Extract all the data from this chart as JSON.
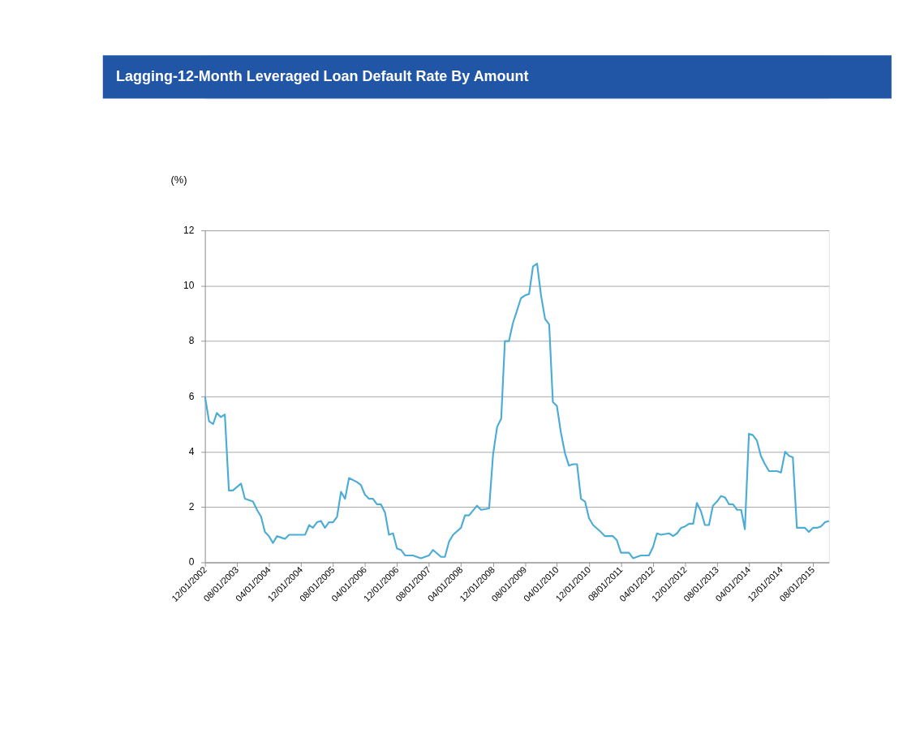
{
  "chart_data": {
    "type": "line",
    "title": "Lagging-12-Month  Leveraged Loan Default Rate By Amount",
    "ylabel": "(%)",
    "x": [
      "2002-12",
      "2003-01",
      "2003-02",
      "2003-03",
      "2003-04",
      "2003-05",
      "2003-06",
      "2003-07",
      "2003-09",
      "2003-10",
      "2003-12",
      "2004-01",
      "2004-02",
      "2004-03",
      "2004-04",
      "2004-05",
      "2004-06",
      "2004-07",
      "2004-08",
      "2004-09",
      "2005-01",
      "2005-02",
      "2005-03",
      "2005-04",
      "2005-05",
      "2005-06",
      "2005-07",
      "2005-08",
      "2005-09",
      "2005-10",
      "2005-11",
      "2005-12",
      "2006-02",
      "2006-03",
      "2006-04",
      "2006-05",
      "2006-06",
      "2006-07",
      "2006-08",
      "2006-09",
      "2006-10",
      "2006-11",
      "2006-12",
      "2007-01",
      "2007-02",
      "2007-04",
      "2007-05",
      "2007-06",
      "2007-08",
      "2007-09",
      "2007-11",
      "2007-12",
      "2008-01",
      "2008-02",
      "2008-04",
      "2008-05",
      "2008-06",
      "2008-08",
      "2008-09",
      "2008-11",
      "2008-12",
      "2009-01",
      "2009-02",
      "2009-03",
      "2009-04",
      "2009-05",
      "2009-06",
      "2009-07",
      "2009-08",
      "2009-09",
      "2009-10",
      "2009-11",
      "2009-12",
      "2010-01",
      "2010-02",
      "2010-03",
      "2010-04",
      "2010-05",
      "2010-06",
      "2010-07",
      "2010-08",
      "2010-09",
      "2010-10",
      "2010-11",
      "2010-12",
      "2011-01",
      "2011-03",
      "2011-04",
      "2011-06",
      "2011-07",
      "2011-08",
      "2011-10",
      "2011-11",
      "2011-12",
      "2012-01",
      "2012-03",
      "2012-04",
      "2012-05",
      "2012-06",
      "2012-08",
      "2012-09",
      "2012-10",
      "2012-11",
      "2012-12",
      "2013-01",
      "2013-02",
      "2013-03",
      "2013-04",
      "2013-05",
      "2013-06",
      "2013-07",
      "2013-08",
      "2013-09",
      "2013-10",
      "2013-11",
      "2013-12",
      "2014-01",
      "2014-02",
      "2014-03",
      "2014-04",
      "2014-05",
      "2014-06",
      "2014-07",
      "2014-08",
      "2014-09",
      "2014-11",
      "2014-12",
      "2015-01",
      "2015-02",
      "2015-03",
      "2015-04",
      "2015-05",
      "2015-06",
      "2015-07",
      "2015-08",
      "2015-09",
      "2015-10",
      "2015-11",
      "2015-12"
    ],
    "series": [
      {
        "color": "#4bacd6",
        "values": [
          6.0,
          5.1,
          5.0,
          5.4,
          5.25,
          5.35,
          2.6,
          2.6,
          2.85,
          2.3,
          2.2,
          1.9,
          1.65,
          1.1,
          0.95,
          0.7,
          0.95,
          0.9,
          0.85,
          1.0,
          1.0,
          1.35,
          1.25,
          1.45,
          1.5,
          1.25,
          1.45,
          1.45,
          1.65,
          2.55,
          2.3,
          3.05,
          2.9,
          2.8,
          2.45,
          2.3,
          2.3,
          2.1,
          2.1,
          1.8,
          1.0,
          1.05,
          0.5,
          0.45,
          0.25,
          0.25,
          0.2,
          0.15,
          0.25,
          0.45,
          0.2,
          0.2,
          0.75,
          1.0,
          1.25,
          1.7,
          1.7,
          2.05,
          1.9,
          1.95,
          3.9,
          4.9,
          5.2,
          8.0,
          8.0,
          8.65,
          9.1,
          9.55,
          9.65,
          9.7,
          10.7,
          10.8,
          9.65,
          8.8,
          8.6,
          5.8,
          5.65,
          4.7,
          3.95,
          3.5,
          3.55,
          3.55,
          2.3,
          2.2,
          1.6,
          1.35,
          1.1,
          0.95,
          0.95,
          0.8,
          0.35,
          0.35,
          0.15,
          0.2,
          0.25,
          0.25,
          0.55,
          1.05,
          1.0,
          1.05,
          0.95,
          1.05,
          1.25,
          1.3,
          1.4,
          1.4,
          2.15,
          1.85,
          1.35,
          1.35,
          2.05,
          2.2,
          2.4,
          2.35,
          2.1,
          2.1,
          1.9,
          1.9,
          1.2,
          4.65,
          4.6,
          4.4,
          3.85,
          3.55,
          3.3,
          3.3,
          3.25,
          4.0,
          3.85,
          3.8,
          1.25,
          1.25,
          1.25,
          1.1,
          1.25,
          1.25,
          1.3,
          1.45,
          1.5
        ]
      }
    ],
    "xlim": [
      "2002-12",
      "2015-12"
    ],
    "xticks": [
      {
        "value": "2002-12",
        "label": "12/01/2002"
      },
      {
        "value": "2003-08",
        "label": "08/01/2003"
      },
      {
        "value": "2004-04",
        "label": "04/01/2004"
      },
      {
        "value": "2004-12",
        "label": "12/01/2004"
      },
      {
        "value": "2005-08",
        "label": "08/01/2005"
      },
      {
        "value": "2006-04",
        "label": "04/01/2006"
      },
      {
        "value": "2006-12",
        "label": "12/01/2006"
      },
      {
        "value": "2007-08",
        "label": "08/01/2007"
      },
      {
        "value": "2008-04",
        "label": "04/01/2008"
      },
      {
        "value": "2008-12",
        "label": "12/01/2008"
      },
      {
        "value": "2009-08",
        "label": "08/01/2009"
      },
      {
        "value": "2010-04",
        "label": "04/01/2010"
      },
      {
        "value": "2010-12",
        "label": "12/01/2010"
      },
      {
        "value": "2011-08",
        "label": "08/01/2011"
      },
      {
        "value": "2012-04",
        "label": "04/01/2012"
      },
      {
        "value": "2012-12",
        "label": "12/01/2012"
      },
      {
        "value": "2013-08",
        "label": "08/01/2013"
      },
      {
        "value": "2014-04",
        "label": "04/01/2014"
      },
      {
        "value": "2014-12",
        "label": "12/01/2014"
      },
      {
        "value": "2015-08",
        "label": "08/01/2015"
      }
    ],
    "ylim": [
      0,
      12
    ],
    "yticks": [
      0,
      2,
      4,
      6,
      8,
      10,
      12
    ],
    "grid": "y",
    "marker": "none",
    "line_style": "solid"
  }
}
